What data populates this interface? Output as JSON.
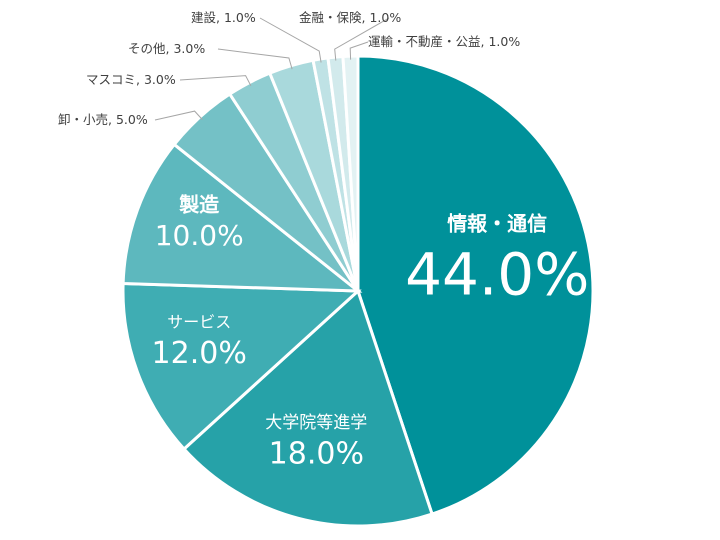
{
  "chart_data": {
    "type": "pie",
    "start_angle_deg": 0,
    "direction": "clockwise",
    "slices": [
      {
        "label": "情報・通信",
        "value": 44.0,
        "value_text": "44.0%",
        "color": "#00919a",
        "placement": "inside"
      },
      {
        "label": "大学院等進学",
        "value": 18.0,
        "value_text": "18.0%",
        "color": "#26a2a8",
        "placement": "inside"
      },
      {
        "label": "サービス",
        "value": 12.0,
        "value_text": "12.0%",
        "color": "#3fadb3",
        "placement": "inside"
      },
      {
        "label": "製造",
        "value": 10.0,
        "value_text": "10.0%",
        "color": "#5db8be",
        "placement": "inside"
      },
      {
        "label": "卸・小売",
        "value": 5.0,
        "value_text": "5.0%",
        "color": "#74c1c6",
        "placement": "outside"
      },
      {
        "label": "マスコミ",
        "value": 3.0,
        "value_text": "3.0%",
        "color": "#8fcdd1",
        "placement": "outside"
      },
      {
        "label": "その他",
        "value": 3.0,
        "value_text": "3.0%",
        "color": "#a9d9dc",
        "placement": "outside"
      },
      {
        "label": "建設",
        "value": 1.0,
        "value_text": "1.0%",
        "color": "#bfe2e5",
        "placement": "outside"
      },
      {
        "label": "金融・保険",
        "value": 1.0,
        "value_text": "1.0%",
        "color": "#d2eaec",
        "placement": "outside"
      },
      {
        "label": "運輸・不動産・公益",
        "value": 1.0,
        "value_text": "1.0%",
        "color": "#e3f2f3",
        "placement": "outside"
      }
    ],
    "legend": "none"
  }
}
